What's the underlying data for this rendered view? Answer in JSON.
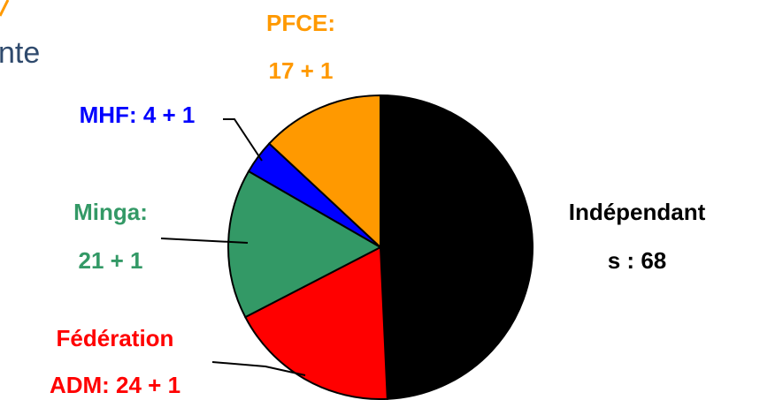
{
  "chart_data": {
    "type": "pie",
    "annotations": [
      "nte"
    ],
    "labels": [
      [
        "Indépendant",
        "s : 68"
      ],
      [
        "Fédération",
        "ADM: 24 + 1"
      ],
      [
        "Minga:",
        "21 + 1"
      ],
      [
        "MHF: 4 + 1"
      ],
      [
        "PFCE:",
        "17 + 1"
      ]
    ],
    "values": [
      68,
      25,
      22,
      5,
      18
    ],
    "colors": [
      "#000000",
      "#ff0000",
      "#339966",
      "#0000ff",
      "#ff9900"
    ],
    "label_colors": [
      "#000000",
      "#ff0000",
      "#339966",
      "#0000ff",
      "#ff9900"
    ]
  }
}
